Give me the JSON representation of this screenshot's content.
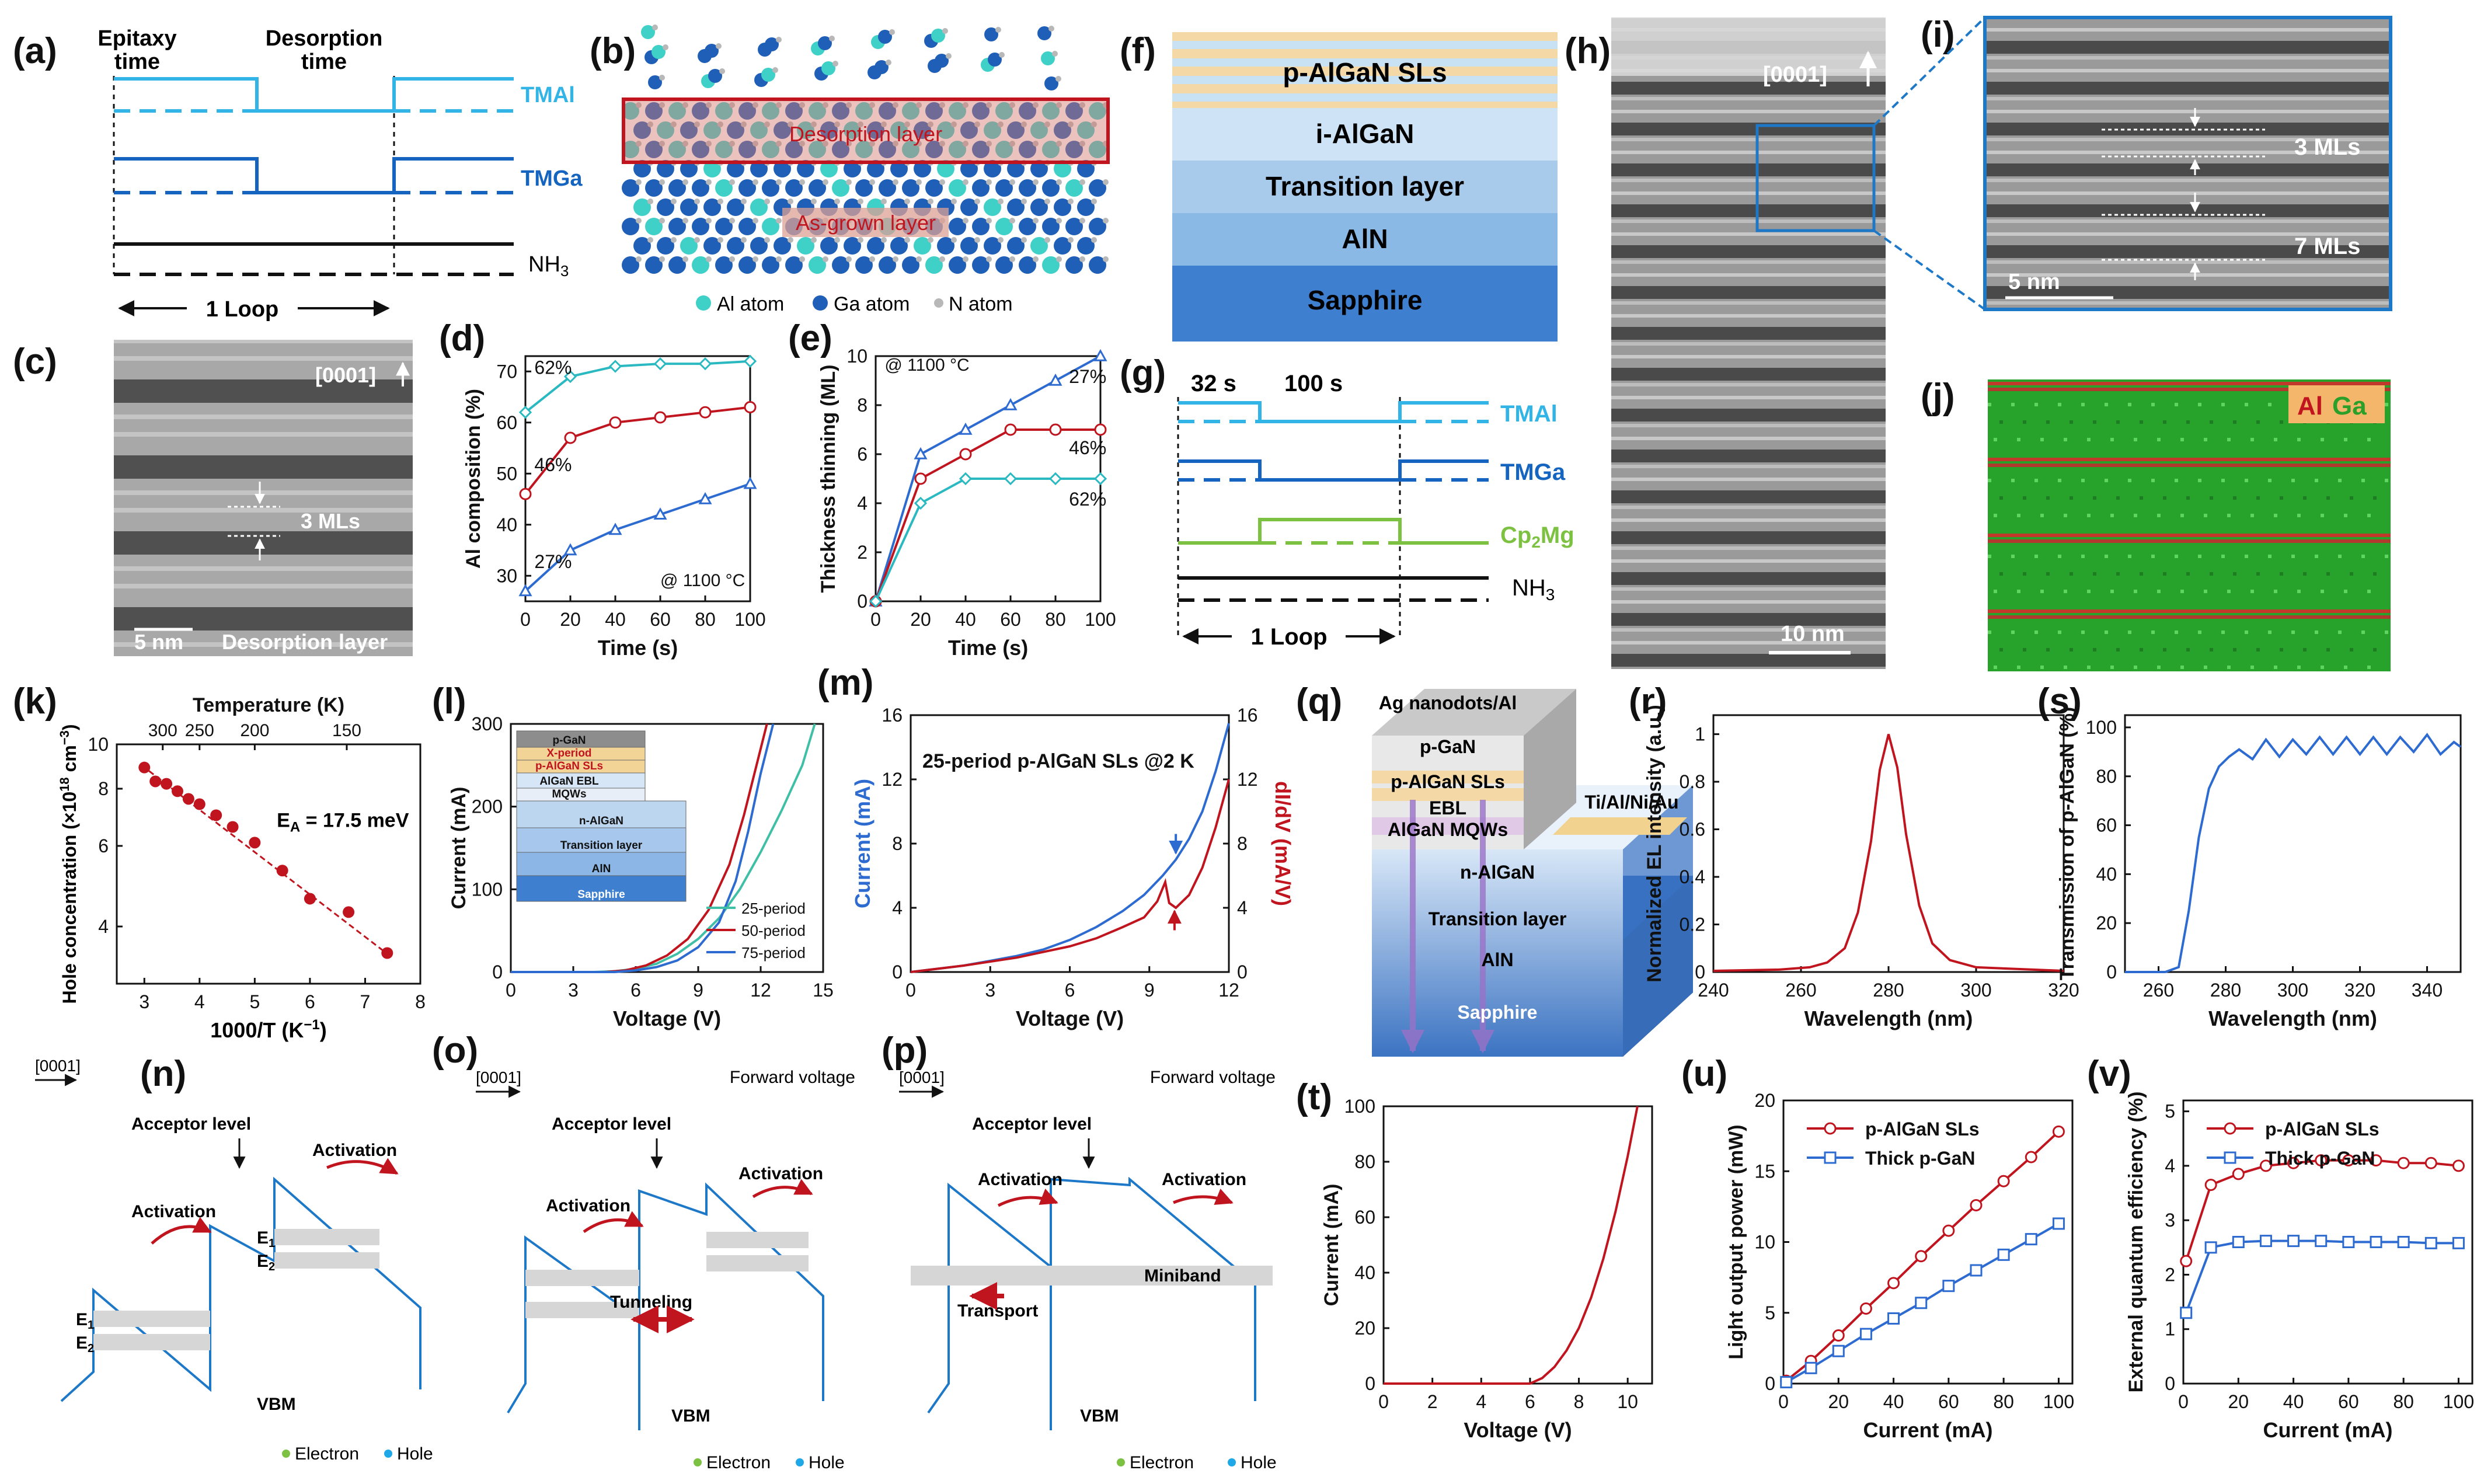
{
  "figure": {
    "panels": {
      "a": "(a)",
      "b": "(b)",
      "c": "(c)",
      "d": "(d)",
      "e": "(e)",
      "f": "(f)",
      "g": "(g)",
      "h": "(h)",
      "i": "(i)",
      "j": "(j)",
      "k": "(k)",
      "l": "(l)",
      "m": "(m)",
      "n": "(n)",
      "o": "(o)",
      "p": "(p)",
      "q": "(q)",
      "r": "(r)",
      "s": "(s)",
      "t": "(t)",
      "u": "(u)",
      "v": "(v)"
    },
    "a": {
      "epitaxy": "Epitaxy",
      "epitaxy2": "time",
      "desorption": "Desorption",
      "desorption2": "time",
      "tmal": "TMAl",
      "tmga": "TMGa",
      "nh3": "NH",
      "nh3_sub": "3",
      "loop": "1 Loop"
    },
    "b": {
      "desorption_layer": "Desorption layer",
      "as_grown": "As-grown layer",
      "al_atom": "Al atom",
      "ga_atom": "Ga atom",
      "n_atom": "N atom"
    },
    "c": {
      "direction": "[0001]",
      "mls": "3 MLs",
      "scale": "5 nm",
      "caption": "Desorption layer"
    },
    "f": {
      "layers": [
        "p-AlGaN SLs",
        "i-AlGaN",
        "Transition layer",
        "AlN",
        "Sapphire"
      ]
    },
    "g": {
      "t1": "32 s",
      "t2": "100 s",
      "tmal": "TMAl",
      "tmga": "TMGa",
      "cp2mg": "Cp",
      "cp2mg_sub": "2",
      "cp2mg_tail": "Mg",
      "nh3": "NH",
      "nh3_sub": "3",
      "loop": "1 Loop"
    },
    "h": {
      "direction": "[0001]",
      "scale": "10 nm"
    },
    "i": {
      "mls1": "3 MLs",
      "mls2": "7 MLs",
      "scale": "5 nm"
    },
    "j": {
      "al": "Al",
      "ga": "Ga"
    },
    "n": {
      "direction": "[0001]",
      "acceptor": "Acceptor level",
      "activation": "Activation",
      "e1": "E",
      "e2": "E",
      "sub1": "1",
      "sub2": "2",
      "vbm": "VBM",
      "electron": "Electron",
      "hole": "Hole"
    },
    "o": {
      "direction": "[0001]",
      "forward": "Forward voltage",
      "acceptor": "Acceptor level",
      "activation": "Activation",
      "tunneling": "Tunneling",
      "vbm": "VBM",
      "electron": "Electron",
      "hole": "Hole"
    },
    "p": {
      "direction": "[0001]",
      "forward": "Forward voltage",
      "acceptor": "Acceptor level",
      "activation": "Activation",
      "miniband": "Miniband",
      "transport": "Transport",
      "vbm": "VBM",
      "electron": "Electron",
      "hole": "Hole"
    },
    "q": {
      "layers": [
        "Ag nanodots/Al",
        "p-GaN",
        "p-AlGaN SLs",
        "EBL",
        "AlGaN MQWs",
        "n-AlGaN",
        "Transition layer",
        "AlN",
        "Sapphire"
      ],
      "contact": "Ti/Al/Ni/Au"
    }
  },
  "chart_data": [
    {
      "panel": "d",
      "type": "line",
      "xlabel": "Time (s)",
      "ylabel": "Al composition (%)",
      "xlim": [
        0,
        100
      ],
      "ylim": [
        25,
        73
      ],
      "xticks": [
        0,
        20,
        40,
        60,
        80,
        100
      ],
      "yticks": [
        30,
        40,
        50,
        60,
        70
      ],
      "annotation": "@ 1100 °C",
      "series": [
        {
          "name": "62%",
          "color": "#2ab9c0",
          "marker": "diamond",
          "x": [
            0,
            20,
            40,
            60,
            80,
            100
          ],
          "y": [
            62,
            69,
            71,
            71.5,
            71.5,
            72
          ]
        },
        {
          "name": "46%",
          "color": "#c0151f",
          "marker": "circle",
          "x": [
            0,
            20,
            40,
            60,
            80,
            100
          ],
          "y": [
            46,
            57,
            60,
            61,
            62,
            63
          ]
        },
        {
          "name": "27%",
          "color": "#2d6bd1",
          "marker": "triangle",
          "x": [
            0,
            20,
            40,
            60,
            80,
            100
          ],
          "y": [
            27,
            35,
            39,
            42,
            45,
            48
          ]
        }
      ]
    },
    {
      "panel": "e",
      "type": "line",
      "xlabel": "Time (s)",
      "ylabel": "Thickness thinning (ML)",
      "xlim": [
        0,
        100
      ],
      "ylim": [
        0,
        10
      ],
      "xticks": [
        0,
        20,
        40,
        60,
        80,
        100
      ],
      "yticks": [
        0,
        2,
        4,
        6,
        8,
        10
      ],
      "annotation": "@ 1100 °C",
      "series": [
        {
          "name": "27%",
          "color": "#2d6bd1",
          "marker": "triangle",
          "x": [
            0,
            20,
            40,
            60,
            80,
            100
          ],
          "y": [
            0,
            6,
            7,
            8,
            9,
            10
          ]
        },
        {
          "name": "46%",
          "color": "#c0151f",
          "marker": "circle",
          "x": [
            0,
            20,
            40,
            60,
            80,
            100
          ],
          "y": [
            0,
            5,
            6,
            7,
            7,
            7
          ]
        },
        {
          "name": "62%",
          "color": "#2ab9c0",
          "marker": "diamond",
          "x": [
            0,
            20,
            40,
            60,
            80,
            100
          ],
          "y": [
            0,
            4,
            5,
            5,
            5,
            5
          ]
        }
      ]
    },
    {
      "panel": "k",
      "type": "scatter",
      "xlabel": "1000/T (K",
      "xlabel_sup": "−1",
      "xlabel_tail": ")",
      "ylabel": "Hole concentration (×10",
      "ylabel_sup": "18",
      "ylabel_mid": " cm",
      "ylabel_sup2": "−3",
      "ylabel_tail": ")",
      "top_label": "Temperature (K)",
      "top_ticks": [
        "300",
        "250",
        "200",
        "150"
      ],
      "top_tick_x": [
        3.333,
        4.0,
        5.0,
        6.667
      ],
      "xlim": [
        2.5,
        8
      ],
      "ylim_log": [
        3,
        10
      ],
      "xticks": [
        3,
        4,
        5,
        6,
        7,
        8
      ],
      "yticks": [
        4,
        6,
        8,
        10
      ],
      "annotation": "E",
      "annotation_sub": "A",
      "annotation_tail": " = 17.5 meV",
      "color": "#c0151f",
      "x": [
        3.0,
        3.2,
        3.4,
        3.6,
        3.8,
        4.0,
        4.3,
        4.6,
        5.0,
        5.5,
        6.0,
        6.7,
        7.4
      ],
      "y": [
        8.9,
        8.3,
        8.2,
        7.9,
        7.6,
        7.4,
        7.0,
        6.6,
        6.1,
        5.3,
        4.6,
        4.3,
        3.5
      ],
      "fit_x": [
        2.95,
        7.45
      ],
      "fit_y": [
        9.0,
        3.45
      ]
    },
    {
      "panel": "l",
      "type": "line",
      "xlabel": "Voltage (V)",
      "ylabel": "Current (mA)",
      "xlim": [
        0,
        15
      ],
      "ylim": [
        0,
        300
      ],
      "xticks": [
        0,
        3,
        6,
        9,
        12,
        15
      ],
      "yticks": [
        0,
        100,
        200,
        300
      ],
      "inset_layers": [
        "p-GaN",
        "X-period",
        "p-AlGaN SLs",
        "AlGaN EBL",
        "MQWs",
        "n-AlGaN",
        "Transition layer",
        "AlN",
        "Sapphire"
      ],
      "series": [
        {
          "name": "25-period",
          "color": "#3fbfa5",
          "x": [
            0,
            4,
            5,
            6,
            7,
            8,
            9,
            10,
            11,
            12,
            13,
            14,
            14.6
          ],
          "y": [
            0,
            0,
            1,
            4,
            10,
            22,
            40,
            65,
            100,
            145,
            195,
            250,
            300
          ]
        },
        {
          "name": "50-period",
          "color": "#c0151f",
          "x": [
            0,
            4.5,
            5.5,
            6.5,
            7.5,
            8.5,
            9.5,
            10.5,
            11.2,
            11.8,
            12.3
          ],
          "y": [
            0,
            0,
            2,
            8,
            20,
            40,
            75,
            130,
            190,
            250,
            300
          ]
        },
        {
          "name": "75-period",
          "color": "#2d6bd1",
          "x": [
            0,
            5,
            6,
            7,
            8,
            9,
            10,
            10.8,
            11.4,
            12.0,
            12.6
          ],
          "y": [
            0,
            0,
            2,
            6,
            14,
            30,
            60,
            110,
            170,
            240,
            300
          ]
        }
      ]
    },
    {
      "panel": "m",
      "type": "line",
      "title": "25-period p-AlGaN SLs @2 K",
      "xlabel": "Voltage (V)",
      "ylabel": "Current (mA)",
      "y2label": "dI/dV (mA/V)",
      "xlim": [
        0,
        12
      ],
      "ylim": [
        0,
        16
      ],
      "y2lim": [
        0,
        16
      ],
      "xticks": [
        0,
        3,
        6,
        9,
        12
      ],
      "yticks": [
        0,
        4,
        8,
        12,
        16
      ],
      "series": [
        {
          "name": "Current",
          "color": "#2d6bd1",
          "x": [
            0,
            1,
            2,
            3,
            4,
            5,
            6,
            7,
            8,
            8.8,
            9.5,
            10,
            10.5,
            11,
            11.5,
            12
          ],
          "y": [
            0,
            0.2,
            0.4,
            0.7,
            1.0,
            1.4,
            2.0,
            2.8,
            3.8,
            4.8,
            6.0,
            7.0,
            8.3,
            10.0,
            12.5,
            15.5
          ]
        },
        {
          "name": "dI/dV",
          "color": "#c0151f",
          "axis": "right",
          "x": [
            0,
            2,
            4,
            6,
            7,
            8,
            8.8,
            9.3,
            9.6,
            9.75,
            10.0,
            10.5,
            11,
            11.5,
            12
          ],
          "y": [
            0,
            0.4,
            0.9,
            1.6,
            2.1,
            2.8,
            3.4,
            4.4,
            5.6,
            4.3,
            4.0,
            4.8,
            6.5,
            9.0,
            12.0
          ]
        }
      ]
    },
    {
      "panel": "r",
      "type": "line",
      "xlabel": "Wavelength (nm)",
      "ylabel": "Normalized EL intensity (a.u.)",
      "xlim": [
        240,
        320
      ],
      "ylim": [
        0,
        1.08
      ],
      "xticks": [
        240,
        260,
        280,
        300,
        320
      ],
      "yticks": [
        0,
        0.2,
        0.4,
        0.6,
        0.8,
        1.0
      ],
      "series": [
        {
          "name": "EL",
          "color": "#c0151f",
          "x": [
            240,
            255,
            262,
            266,
            270,
            273,
            276,
            278,
            280,
            282,
            284,
            287,
            290,
            294,
            300,
            320
          ],
          "y": [
            0.005,
            0.01,
            0.02,
            0.04,
            0.1,
            0.25,
            0.55,
            0.85,
            1.0,
            0.86,
            0.58,
            0.28,
            0.12,
            0.05,
            0.02,
            0.005
          ]
        }
      ]
    },
    {
      "panel": "s",
      "type": "line",
      "xlabel": "Wavelength (nm)",
      "ylabel": "Transmission of p-AlGaN (%)",
      "xlim": [
        250,
        350
      ],
      "ylim": [
        0,
        105
      ],
      "xticks": [
        260,
        280,
        300,
        320,
        340
      ],
      "yticks": [
        0,
        20,
        40,
        60,
        80,
        100
      ],
      "series": [
        {
          "name": "Transmission",
          "color": "#2d6bd1",
          "x": [
            250,
            262,
            266,
            269,
            272,
            275,
            278,
            281,
            284,
            288,
            292,
            296,
            300,
            304,
            308,
            312,
            316,
            320,
            324,
            328,
            332,
            336,
            340,
            344,
            348,
            350
          ],
          "y": [
            0,
            0,
            2,
            25,
            55,
            75,
            84,
            88,
            91,
            87,
            95,
            88,
            95,
            89,
            96,
            89,
            96,
            89,
            96,
            89,
            96,
            90,
            97,
            89,
            94,
            92
          ]
        }
      ]
    },
    {
      "panel": "t",
      "type": "line",
      "xlabel": "Voltage (V)",
      "ylabel": "Current (mA)",
      "xlim": [
        0,
        11
      ],
      "ylim": [
        0,
        100
      ],
      "xticks": [
        0,
        2,
        4,
        6,
        8,
        10
      ],
      "yticks": [
        0,
        20,
        40,
        60,
        80,
        100
      ],
      "series": [
        {
          "name": "I-V",
          "color": "#c0151f",
          "x": [
            0,
            6.0,
            6.5,
            7.0,
            7.5,
            8.0,
            8.5,
            9.0,
            9.5,
            10.0,
            10.4
          ],
          "y": [
            0,
            0,
            2,
            6,
            12,
            20,
            31,
            45,
            62,
            82,
            100
          ]
        }
      ]
    },
    {
      "panel": "u",
      "type": "line",
      "xlabel": "Current (mA)",
      "ylabel": "Light output power (mW)",
      "xlim": [
        0,
        105
      ],
      "ylim": [
        0,
        20
      ],
      "xticks": [
        0,
        20,
        40,
        60,
        80,
        100
      ],
      "yticks": [
        0,
        5,
        10,
        15,
        20
      ],
      "legend": "top-left",
      "series": [
        {
          "name": "p-AlGaN SLs",
          "color": "#c0151f",
          "marker": "circle",
          "x": [
            1,
            10,
            20,
            30,
            40,
            50,
            60,
            70,
            80,
            90,
            100
          ],
          "y": [
            0.2,
            1.6,
            3.4,
            5.3,
            7.1,
            9.0,
            10.8,
            12.6,
            14.3,
            16.0,
            17.8
          ]
        },
        {
          "name": "Thick p-GaN",
          "color": "#2d6bd1",
          "marker": "square",
          "x": [
            1,
            10,
            20,
            30,
            40,
            50,
            60,
            70,
            80,
            90,
            100
          ],
          "y": [
            0.1,
            1.1,
            2.3,
            3.5,
            4.6,
            5.7,
            6.9,
            8.0,
            9.1,
            10.2,
            11.3
          ]
        }
      ]
    },
    {
      "panel": "v",
      "type": "line",
      "xlabel": "Current (mA)",
      "ylabel": "External quantum efficiency (%)",
      "xlim": [
        0,
        105
      ],
      "ylim": [
        0,
        5.2
      ],
      "xticks": [
        0,
        20,
        40,
        60,
        80,
        100
      ],
      "yticks": [
        0,
        1,
        2,
        3,
        4,
        5
      ],
      "legend": "top-left",
      "series": [
        {
          "name": "p-AlGaN SLs",
          "color": "#c0151f",
          "marker": "circle",
          "x": [
            1,
            10,
            20,
            30,
            40,
            50,
            60,
            70,
            80,
            90,
            100
          ],
          "y": [
            2.25,
            3.65,
            3.85,
            4.0,
            4.05,
            4.1,
            4.1,
            4.1,
            4.05,
            4.05,
            4.0
          ]
        },
        {
          "name": "Thick p-GaN",
          "color": "#2d6bd1",
          "marker": "square",
          "x": [
            1,
            10,
            20,
            30,
            40,
            50,
            60,
            70,
            80,
            90,
            100
          ],
          "y": [
            1.3,
            2.5,
            2.6,
            2.62,
            2.62,
            2.62,
            2.6,
            2.6,
            2.6,
            2.58,
            2.58
          ]
        }
      ]
    }
  ]
}
